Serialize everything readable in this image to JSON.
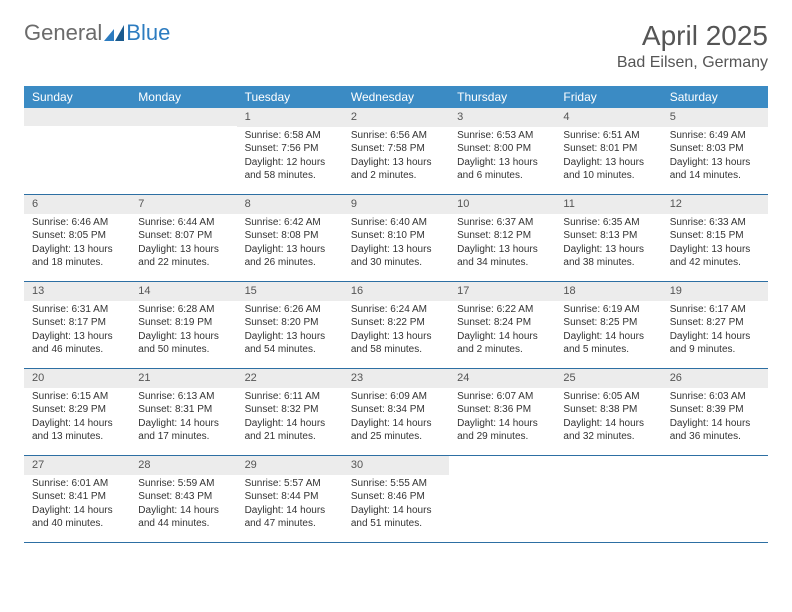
{
  "logo": {
    "part1": "General",
    "part2": "Blue"
  },
  "title": "April 2025",
  "location": "Bad Eilsen, Germany",
  "header_color": "#3b8bc4",
  "daynum_bg": "#ececec",
  "row_divider": "#2d6fa3",
  "weekdays": [
    "Sunday",
    "Monday",
    "Tuesday",
    "Wednesday",
    "Thursday",
    "Friday",
    "Saturday"
  ],
  "weeks": [
    [
      null,
      null,
      {
        "n": "1",
        "sr": "Sunrise: 6:58 AM",
        "ss": "Sunset: 7:56 PM",
        "dl1": "Daylight: 12 hours",
        "dl2": "and 58 minutes."
      },
      {
        "n": "2",
        "sr": "Sunrise: 6:56 AM",
        "ss": "Sunset: 7:58 PM",
        "dl1": "Daylight: 13 hours",
        "dl2": "and 2 minutes."
      },
      {
        "n": "3",
        "sr": "Sunrise: 6:53 AM",
        "ss": "Sunset: 8:00 PM",
        "dl1": "Daylight: 13 hours",
        "dl2": "and 6 minutes."
      },
      {
        "n": "4",
        "sr": "Sunrise: 6:51 AM",
        "ss": "Sunset: 8:01 PM",
        "dl1": "Daylight: 13 hours",
        "dl2": "and 10 minutes."
      },
      {
        "n": "5",
        "sr": "Sunrise: 6:49 AM",
        "ss": "Sunset: 8:03 PM",
        "dl1": "Daylight: 13 hours",
        "dl2": "and 14 minutes."
      }
    ],
    [
      {
        "n": "6",
        "sr": "Sunrise: 6:46 AM",
        "ss": "Sunset: 8:05 PM",
        "dl1": "Daylight: 13 hours",
        "dl2": "and 18 minutes."
      },
      {
        "n": "7",
        "sr": "Sunrise: 6:44 AM",
        "ss": "Sunset: 8:07 PM",
        "dl1": "Daylight: 13 hours",
        "dl2": "and 22 minutes."
      },
      {
        "n": "8",
        "sr": "Sunrise: 6:42 AM",
        "ss": "Sunset: 8:08 PM",
        "dl1": "Daylight: 13 hours",
        "dl2": "and 26 minutes."
      },
      {
        "n": "9",
        "sr": "Sunrise: 6:40 AM",
        "ss": "Sunset: 8:10 PM",
        "dl1": "Daylight: 13 hours",
        "dl2": "and 30 minutes."
      },
      {
        "n": "10",
        "sr": "Sunrise: 6:37 AM",
        "ss": "Sunset: 8:12 PM",
        "dl1": "Daylight: 13 hours",
        "dl2": "and 34 minutes."
      },
      {
        "n": "11",
        "sr": "Sunrise: 6:35 AM",
        "ss": "Sunset: 8:13 PM",
        "dl1": "Daylight: 13 hours",
        "dl2": "and 38 minutes."
      },
      {
        "n": "12",
        "sr": "Sunrise: 6:33 AM",
        "ss": "Sunset: 8:15 PM",
        "dl1": "Daylight: 13 hours",
        "dl2": "and 42 minutes."
      }
    ],
    [
      {
        "n": "13",
        "sr": "Sunrise: 6:31 AM",
        "ss": "Sunset: 8:17 PM",
        "dl1": "Daylight: 13 hours",
        "dl2": "and 46 minutes."
      },
      {
        "n": "14",
        "sr": "Sunrise: 6:28 AM",
        "ss": "Sunset: 8:19 PM",
        "dl1": "Daylight: 13 hours",
        "dl2": "and 50 minutes."
      },
      {
        "n": "15",
        "sr": "Sunrise: 6:26 AM",
        "ss": "Sunset: 8:20 PM",
        "dl1": "Daylight: 13 hours",
        "dl2": "and 54 minutes."
      },
      {
        "n": "16",
        "sr": "Sunrise: 6:24 AM",
        "ss": "Sunset: 8:22 PM",
        "dl1": "Daylight: 13 hours",
        "dl2": "and 58 minutes."
      },
      {
        "n": "17",
        "sr": "Sunrise: 6:22 AM",
        "ss": "Sunset: 8:24 PM",
        "dl1": "Daylight: 14 hours",
        "dl2": "and 2 minutes."
      },
      {
        "n": "18",
        "sr": "Sunrise: 6:19 AM",
        "ss": "Sunset: 8:25 PM",
        "dl1": "Daylight: 14 hours",
        "dl2": "and 5 minutes."
      },
      {
        "n": "19",
        "sr": "Sunrise: 6:17 AM",
        "ss": "Sunset: 8:27 PM",
        "dl1": "Daylight: 14 hours",
        "dl2": "and 9 minutes."
      }
    ],
    [
      {
        "n": "20",
        "sr": "Sunrise: 6:15 AM",
        "ss": "Sunset: 8:29 PM",
        "dl1": "Daylight: 14 hours",
        "dl2": "and 13 minutes."
      },
      {
        "n": "21",
        "sr": "Sunrise: 6:13 AM",
        "ss": "Sunset: 8:31 PM",
        "dl1": "Daylight: 14 hours",
        "dl2": "and 17 minutes."
      },
      {
        "n": "22",
        "sr": "Sunrise: 6:11 AM",
        "ss": "Sunset: 8:32 PM",
        "dl1": "Daylight: 14 hours",
        "dl2": "and 21 minutes."
      },
      {
        "n": "23",
        "sr": "Sunrise: 6:09 AM",
        "ss": "Sunset: 8:34 PM",
        "dl1": "Daylight: 14 hours",
        "dl2": "and 25 minutes."
      },
      {
        "n": "24",
        "sr": "Sunrise: 6:07 AM",
        "ss": "Sunset: 8:36 PM",
        "dl1": "Daylight: 14 hours",
        "dl2": "and 29 minutes."
      },
      {
        "n": "25",
        "sr": "Sunrise: 6:05 AM",
        "ss": "Sunset: 8:38 PM",
        "dl1": "Daylight: 14 hours",
        "dl2": "and 32 minutes."
      },
      {
        "n": "26",
        "sr": "Sunrise: 6:03 AM",
        "ss": "Sunset: 8:39 PM",
        "dl1": "Daylight: 14 hours",
        "dl2": "and 36 minutes."
      }
    ],
    [
      {
        "n": "27",
        "sr": "Sunrise: 6:01 AM",
        "ss": "Sunset: 8:41 PM",
        "dl1": "Daylight: 14 hours",
        "dl2": "and 40 minutes."
      },
      {
        "n": "28",
        "sr": "Sunrise: 5:59 AM",
        "ss": "Sunset: 8:43 PM",
        "dl1": "Daylight: 14 hours",
        "dl2": "and 44 minutes."
      },
      {
        "n": "29",
        "sr": "Sunrise: 5:57 AM",
        "ss": "Sunset: 8:44 PM",
        "dl1": "Daylight: 14 hours",
        "dl2": "and 47 minutes."
      },
      {
        "n": "30",
        "sr": "Sunrise: 5:55 AM",
        "ss": "Sunset: 8:46 PM",
        "dl1": "Daylight: 14 hours",
        "dl2": "and 51 minutes."
      },
      null,
      null,
      null
    ]
  ]
}
